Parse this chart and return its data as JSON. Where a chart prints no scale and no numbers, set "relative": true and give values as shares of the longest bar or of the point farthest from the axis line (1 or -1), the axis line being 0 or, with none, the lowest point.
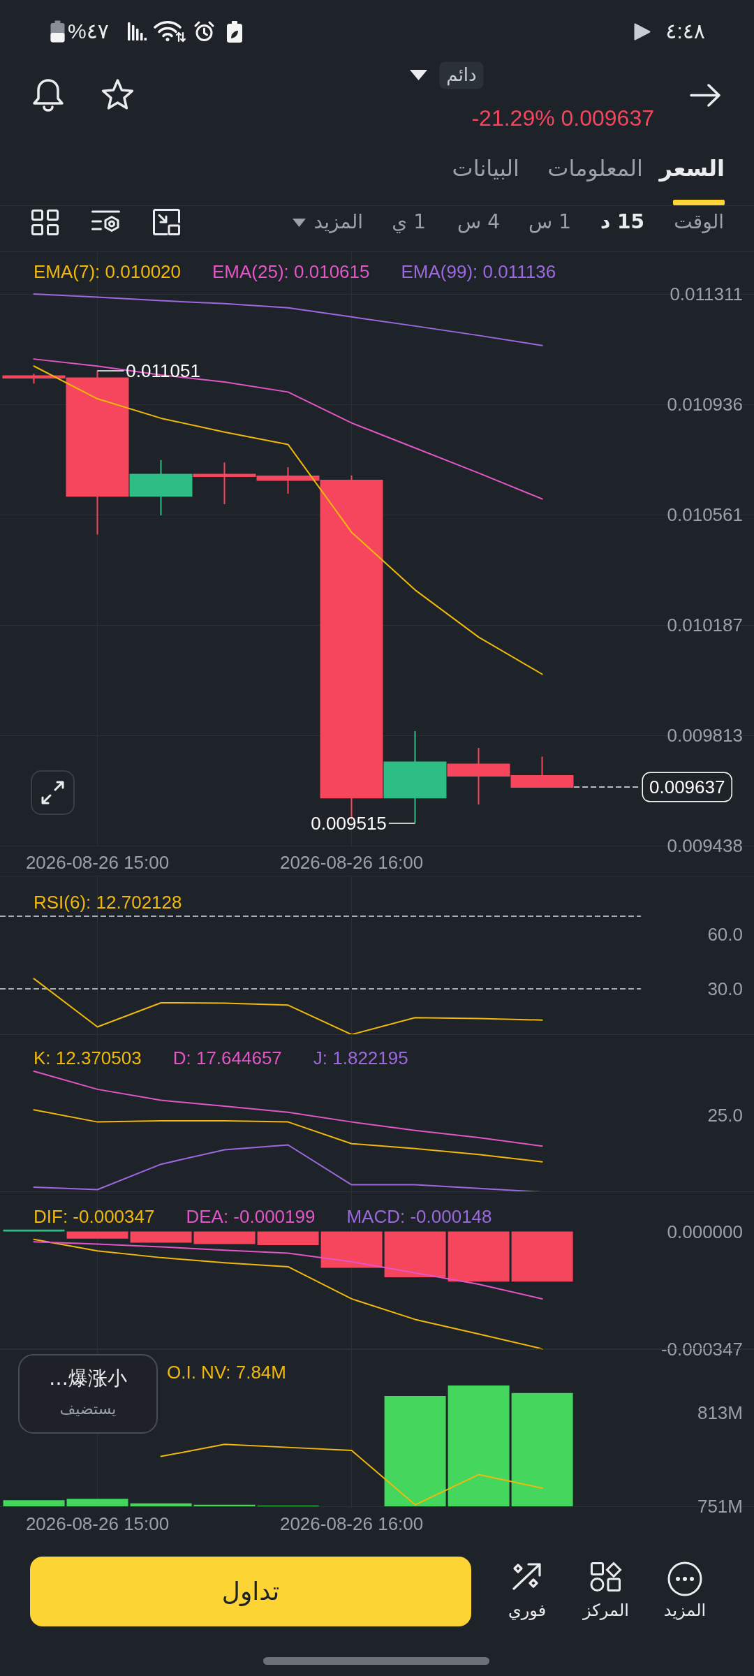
{
  "chart_data": [
    {
      "type": "other",
      "annotations": [
        "٤:٤٨",
        "%٤٧",
        "دائم",
        "-21.29% 0.009637",
        "السعر",
        "المعلومات",
        "البيانات",
        "الوقت",
        "15 د",
        "1 س",
        "4 س",
        "1 ي",
        "المزيد"
      ]
    },
    {
      "type": "candlestick",
      "x": [
        "2026-08-26T14:45",
        "2026-08-26T15:00",
        "2026-08-26T15:15",
        "2026-08-26T15:30",
        "2026-08-26T15:45",
        "2026-08-26T16:00",
        "2026-08-26T16:15",
        "2026-08-26T16:30",
        "2026-08-26T16:45"
      ],
      "ohlc": [
        [
          0.011032,
          0.01104,
          0.011007,
          0.011026
        ],
        [
          0.011025,
          0.011051,
          0.010494,
          0.010625
        ],
        [
          0.010625,
          0.010747,
          0.010559,
          0.010698
        ],
        [
          0.010698,
          0.010739,
          0.010597,
          0.010692
        ],
        [
          0.010692,
          0.010723,
          0.010633,
          0.010679
        ],
        [
          0.010678,
          0.010695,
          0.009528,
          0.009601
        ],
        [
          0.009601,
          0.009827,
          0.009515,
          0.009721
        ],
        [
          0.009714,
          0.00977,
          0.009578,
          0.009675
        ],
        [
          0.009675,
          0.00974,
          0.009637,
          0.009637
        ]
      ],
      "colors": [
        "#f6465d",
        "#f6465d",
        "#2ebd85",
        "#f6465d",
        "#f6465d",
        "#f6465d",
        "#2ebd85",
        "#f6465d",
        "#f6465d"
      ],
      "series": [
        {
          "name": "EMA(7): 0.010020",
          "type": "line",
          "color": "#f0b90b",
          "values": [
            0.011066,
            0.010955,
            0.010889,
            0.010842,
            0.0108,
            0.010502,
            0.010306,
            0.010146,
            0.01002
          ]
        },
        {
          "name": "EMA(25): 0.010615",
          "type": "line",
          "color": "#e356c8",
          "values": [
            0.01109,
            0.011066,
            0.011036,
            0.011012,
            0.010978,
            0.010873,
            0.010788,
            0.010703,
            0.010615
          ]
        },
        {
          "name": "EMA(99): 0.011136",
          "type": "line",
          "color": "#9c6ade",
          "values": [
            0.011311,
            0.0113,
            0.011288,
            0.011278,
            0.011264,
            0.011233,
            0.011202,
            0.01117,
            0.011136
          ]
        }
      ],
      "xlim": [
        "2026-08-26T14:37",
        "2026-08-26T17:35"
      ],
      "xticks": [
        {
          "value": "2026-08-26T15:00",
          "label": "2026-08-26 15:00"
        },
        {
          "value": "2026-08-26T16:00",
          "label": "2026-08-26 16:00"
        }
      ],
      "ylim": [
        0.009438,
        0.011453
      ],
      "yticks": [
        0.011311,
        0.010936,
        0.010561,
        0.010187,
        0.009813,
        0.009438
      ],
      "grid": true,
      "legend": "top left",
      "ref_lines": [
        {
          "axis": "y",
          "value": 0.009637,
          "label": "0.009637",
          "color": "#b7bdc6",
          "line_style": "dashed"
        }
      ],
      "annotations": [
        {
          "text": "0.011051",
          "x": "2026-08-26T15:00",
          "y": 0.011051
        },
        {
          "text": "0.009515",
          "x": "2026-08-26T16:15",
          "y": 0.009515
        }
      ]
    },
    {
      "type": "line",
      "x": [
        "2026-08-26T14:45",
        "2026-08-26T15:00",
        "2026-08-26T15:15",
        "2026-08-26T15:30",
        "2026-08-26T15:45",
        "2026-08-26T16:00",
        "2026-08-26T16:15",
        "2026-08-26T16:30",
        "2026-08-26T16:45"
      ],
      "series": [
        {
          "name": "RSI(6): 12.702128",
          "color": "#f0b90b",
          "values": [
            35.5,
            8.9,
            22.2,
            22.0,
            20.9,
            4.7,
            14.0,
            13.5,
            12.702128
          ]
        }
      ],
      "xlim": [
        "2026-08-26T14:37",
        "2026-08-26T17:35"
      ],
      "xticks": [
        {
          "value": "2026-08-26T15:00",
          "label": null
        },
        {
          "value": "2026-08-26T16:00",
          "label": null
        }
      ],
      "ylim": [
        4.5,
        91.8
      ],
      "yticks": [
        {
          "value": 60,
          "label": "60.0"
        },
        {
          "value": 30,
          "label": "30.0"
        }
      ],
      "ref_lines": [
        {
          "axis": "y",
          "value": 70,
          "color": "#aab0b8",
          "line_style": "dashed"
        },
        {
          "axis": "y",
          "value": 30,
          "color": "#aab0b8",
          "line_style": "dashed"
        }
      ],
      "grid": "x",
      "tick_labels": "y",
      "legend": "top left"
    },
    {
      "type": "line",
      "x": [
        "2026-08-26T14:45",
        "2026-08-26T15:00",
        "2026-08-26T15:15",
        "2026-08-26T15:30",
        "2026-08-26T15:45",
        "2026-08-26T16:00",
        "2026-08-26T16:15",
        "2026-08-26T16:30",
        "2026-08-26T16:45"
      ],
      "relative": true,
      "series": [
        {
          "name": "K: 12.370503",
          "color": "#f0b90b",
          "values": [
            0.68,
            0.58,
            0.59,
            0.59,
            0.58,
            0.4,
            0.36,
            0.31,
            0.25
          ]
        },
        {
          "name": "D: 17.644657",
          "color": "#e356c8",
          "values": [
            1,
            0.85,
            0.76,
            0.71,
            0.66,
            0.58,
            0.51,
            0.45,
            0.38
          ]
        },
        {
          "name": "J: 1.822195",
          "color": "#9c6ade",
          "values": [
            0.04,
            0.02,
            0.23,
            0.35,
            0.39,
            0.06,
            0.06,
            0.03,
            0
          ]
        }
      ],
      "xlim": [
        "2026-08-26T14:37",
        "2026-08-26T17:35"
      ],
      "xticks": [
        {
          "value": "2026-08-26T15:00",
          "label": null
        },
        {
          "value": "2026-08-26T16:00",
          "label": null
        }
      ],
      "annotations": [
        "25.0"
      ],
      "grid": "x",
      "tick_labels": "y",
      "legend": "top left"
    },
    {
      "type": "line",
      "x": [
        "2026-08-26T14:45",
        "2026-08-26T15:00",
        "2026-08-26T15:15",
        "2026-08-26T15:30",
        "2026-08-26T15:45",
        "2026-08-26T16:00",
        "2026-08-26T16:15",
        "2026-08-26T16:30",
        "2026-08-26T16:45"
      ],
      "series": [
        {
          "name": "DIF: -0.000347",
          "color": "#f0b90b",
          "values": [
            -2.3e-05,
            -5.7e-05,
            -7.7e-05,
            -9.2e-05,
            -0.000104,
            -0.000199,
            -0.00026,
            -0.000303,
            -0.000347
          ]
        },
        {
          "name": "DEA: -0.000199",
          "color": "#e356c8",
          "values": [
            -3e-05,
            -3.7e-05,
            -4.5e-05,
            -5.5e-05,
            -6.4e-05,
            -8.9e-05,
            -0.000122,
            -0.000156,
            -0.000199
          ]
        },
        {
          "name": "MACD: -0.000148",
          "type": "bar",
          "colors": [
            "#2ebd85",
            "#f6465d",
            "#f6465d",
            "#f6465d",
            "#f6465d",
            "#f6465d",
            "#f6465d",
            "#f6465d",
            "#f6465d"
          ],
          "values": [
            6e-06,
            -2.1e-05,
            -3.3e-05,
            -3.7e-05,
            -4e-05,
            -0.000107,
            -0.000135,
            -0.000148,
            -0.000148
          ]
        }
      ],
      "xlim": [
        "2026-08-26T14:37",
        "2026-08-26T17:35"
      ],
      "xticks": [
        {
          "value": "2026-08-26T15:00",
          "label": null
        },
        {
          "value": "2026-08-26T16:00",
          "label": null
        }
      ],
      "ylim": [
        -0.000348,
        0.000117
      ],
      "yticks": [
        {
          "value": 0,
          "label": "0.000000"
        },
        -0.000347
      ],
      "grid": "x",
      "tick_labels": "y",
      "legend": "top left"
    },
    {
      "type": "bar",
      "x": [
        "2026-08-26T14:45",
        "2026-08-26T15:00",
        "2026-08-26T15:15",
        "2026-08-26T15:30",
        "2026-08-26T15:45",
        "2026-08-26T16:00",
        "2026-08-26T16:15",
        "2026-08-26T16:30",
        "2026-08-26T16:45"
      ],
      "series": [
        {
          "color": "#45d65e",
          "values": [
            755,
            756,
            753,
            752,
            751.5,
            751,
            824,
            831,
            826
          ]
        },
        {
          "name": "O.I. NV: 7.84M",
          "type": "line",
          "color": "#f0b90b",
          "values": [
            null,
            null,
            784,
            792,
            790,
            788,
            752,
            772,
            763
          ]
        }
      ],
      "xlim": [
        "2026-08-26T14:37",
        "2026-08-26T17:35"
      ],
      "xticks": [
        {
          "value": "2026-08-26T15:00",
          "label": "2026-08-26 15:00"
        },
        {
          "value": "2026-08-26T16:00",
          "label": "2026-08-26 16:00"
        }
      ],
      "ylim": [
        751,
        855
      ],
      "yticks": [
        {
          "value": 813,
          "label": "813M"
        },
        {
          "value": 751,
          "label": "751M"
        }
      ],
      "grid": "x",
      "legend": "top left"
    },
    {
      "type": "other",
      "annotations": [
        "爆涨小…",
        "يستضيف"
      ]
    },
    {
      "type": "other",
      "annotations": [
        "تداول",
        "فوري",
        "المركز",
        "المزيد"
      ]
    }
  ]
}
